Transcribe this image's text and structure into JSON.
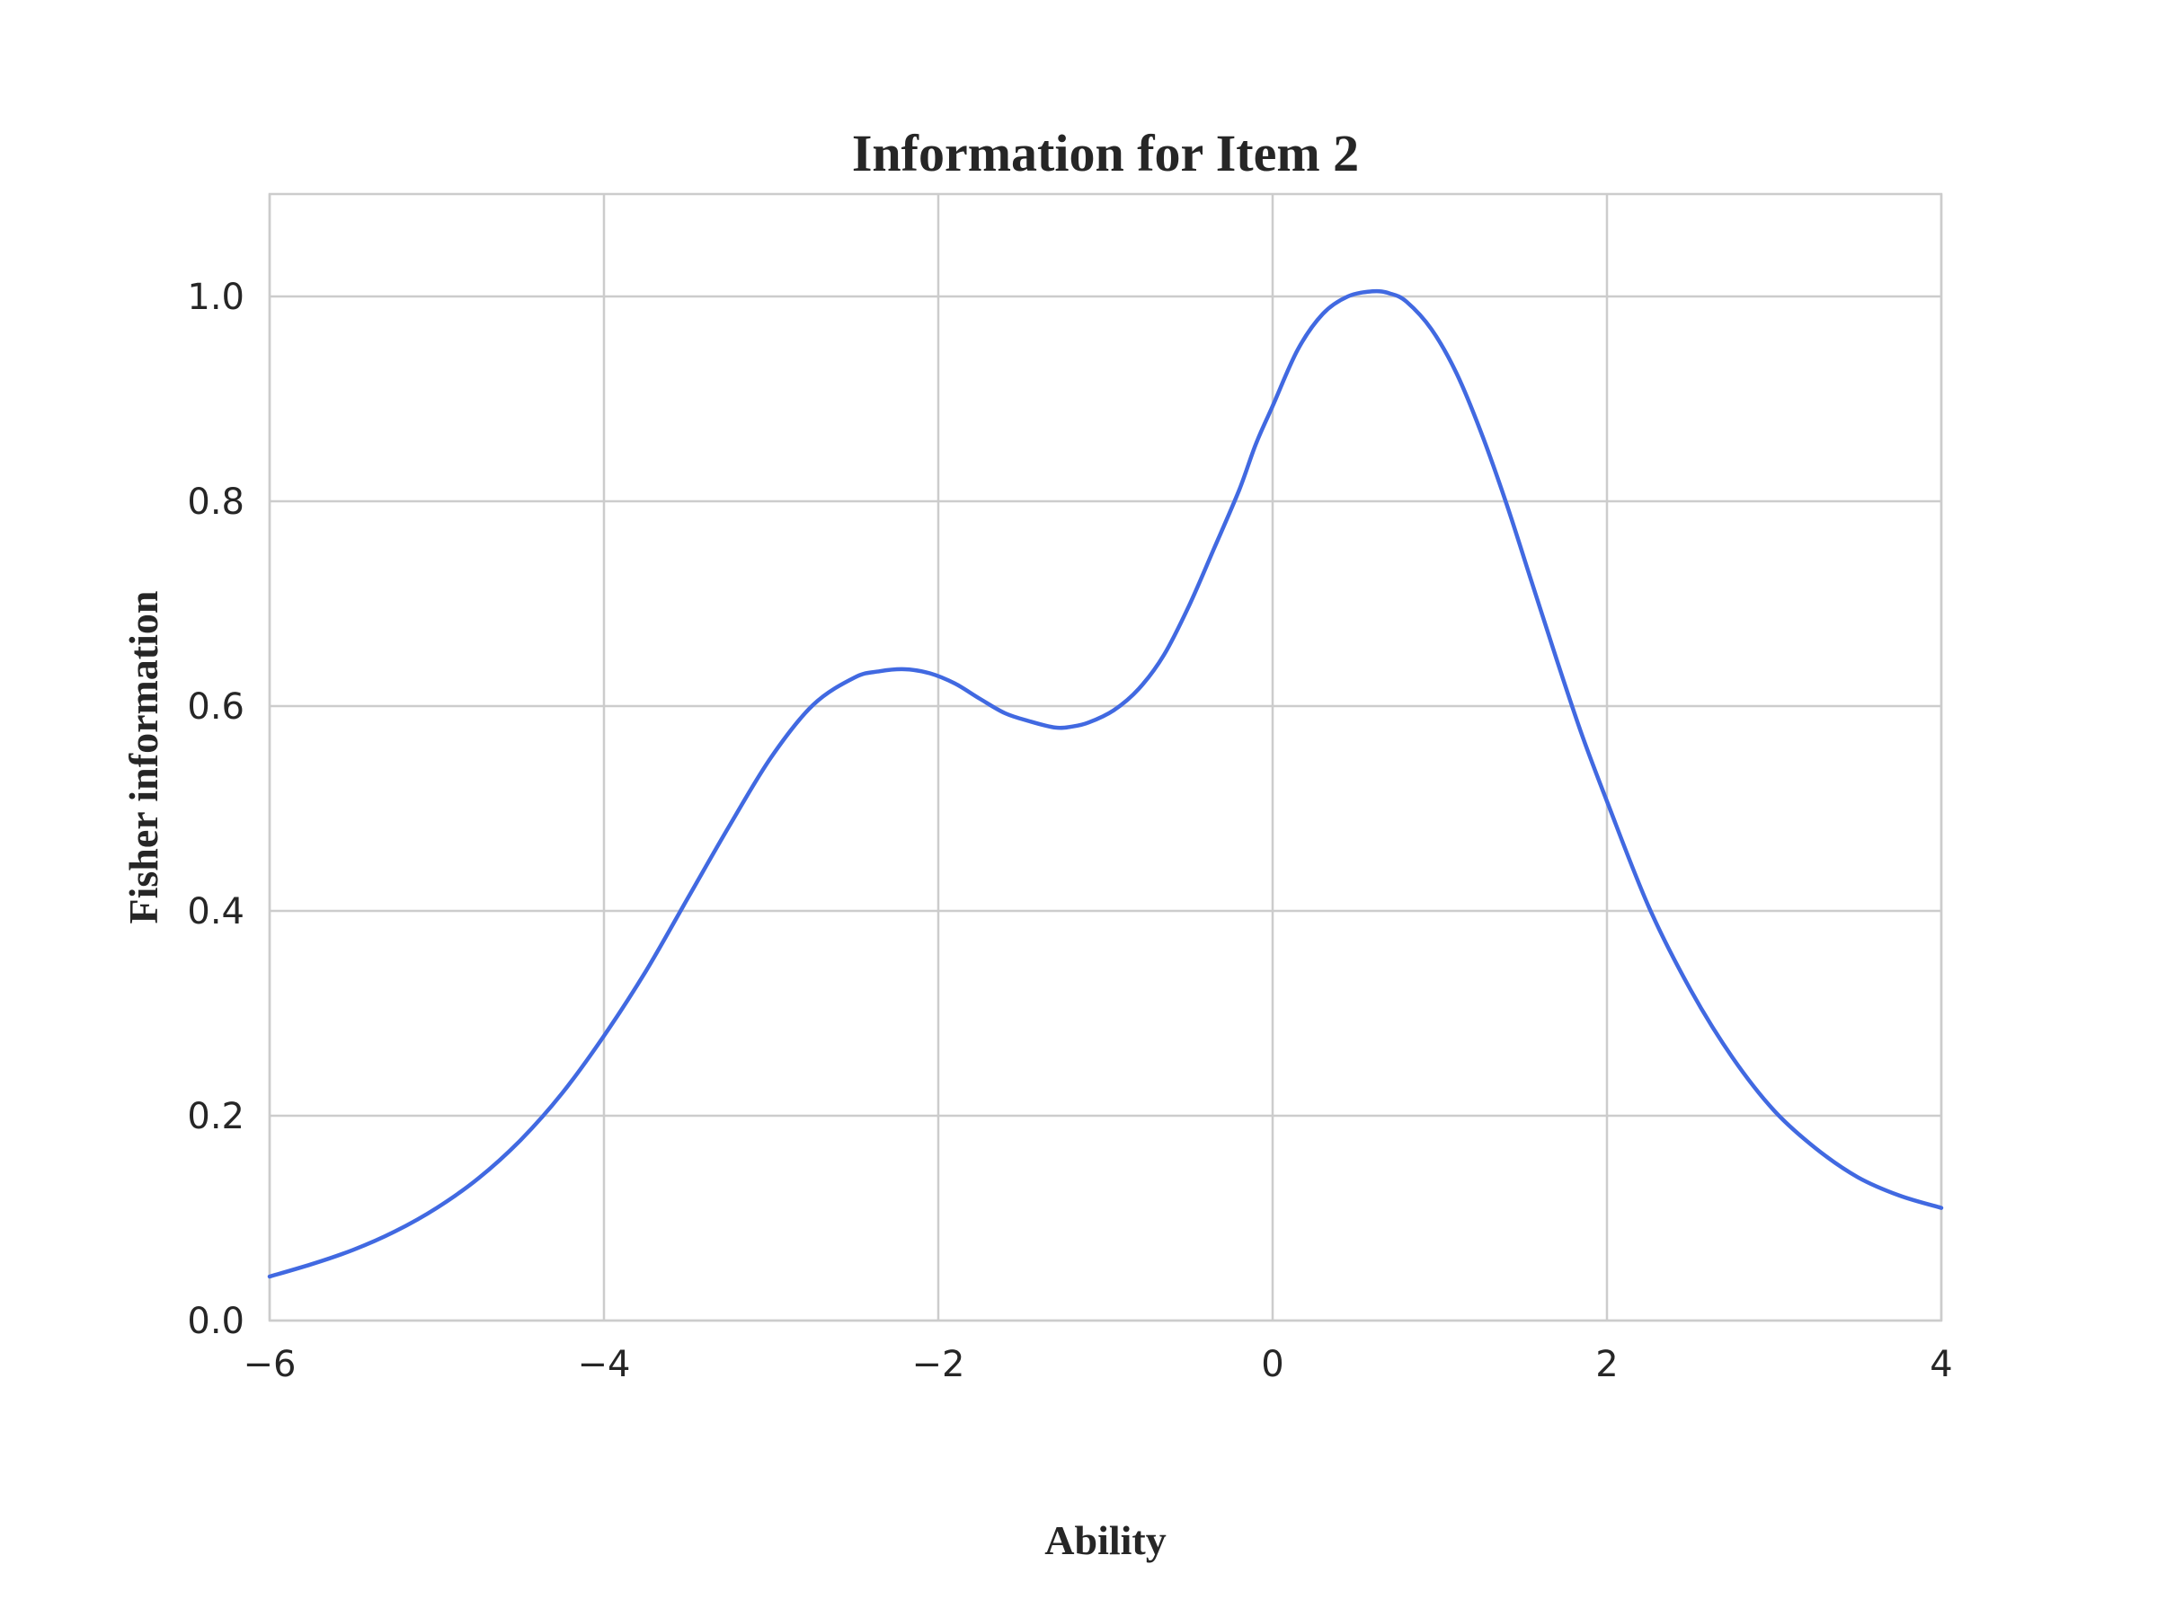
{
  "chart_data": {
    "type": "line",
    "title": "Information for Item 2",
    "xlabel": "Ability",
    "ylabel": "Fisher information",
    "xlim": [
      -6,
      4
    ],
    "ylim": [
      0.0,
      1.1
    ],
    "xticks": [
      -6,
      -4,
      -2,
      0,
      2,
      4
    ],
    "xtick_labels": [
      "−6",
      "−4",
      "−2",
      "0",
      "2",
      "4"
    ],
    "yticks": [
      0.0,
      0.2,
      0.4,
      0.6,
      0.8,
      1.0
    ],
    "ytick_labels": [
      "0.0",
      "0.2",
      "0.4",
      "0.6",
      "0.8",
      "1.0"
    ],
    "grid": true,
    "series": [
      {
        "color": "#4169e1",
        "x": [
          -6.0,
          -5.75,
          -5.5,
          -5.25,
          -5.0,
          -4.75,
          -4.5,
          -4.25,
          -4.0,
          -3.75,
          -3.5,
          -3.25,
          -3.0,
          -2.75,
          -2.5,
          -2.35,
          -2.2,
          -2.05,
          -1.9,
          -1.75,
          -1.6,
          -1.45,
          -1.3,
          -1.2,
          -1.1,
          -0.95,
          -0.8,
          -0.65,
          -0.5,
          -0.35,
          -0.2,
          -0.1,
          0.0,
          0.15,
          0.3,
          0.45,
          0.6,
          0.7,
          0.8,
          0.95,
          1.1,
          1.25,
          1.4,
          1.55,
          1.7,
          1.85,
          2.0,
          2.25,
          2.5,
          2.75,
          3.0,
          3.25,
          3.5,
          3.75,
          4.0
        ],
        "y": [
          0.043,
          0.055,
          0.069,
          0.087,
          0.11,
          0.139,
          0.176,
          0.222,
          0.278,
          0.341,
          0.412,
          0.483,
          0.55,
          0.601,
          0.628,
          0.634,
          0.636,
          0.632,
          0.622,
          0.607,
          0.593,
          0.585,
          0.579,
          0.58,
          0.584,
          0.596,
          0.617,
          0.65,
          0.698,
          0.754,
          0.811,
          0.856,
          0.893,
          0.948,
          0.983,
          1.0,
          1.005,
          1.003,
          0.995,
          0.968,
          0.925,
          0.866,
          0.797,
          0.721,
          0.645,
          0.572,
          0.507,
          0.404,
          0.323,
          0.257,
          0.205,
          0.168,
          0.14,
          0.122,
          0.11
        ]
      }
    ]
  }
}
